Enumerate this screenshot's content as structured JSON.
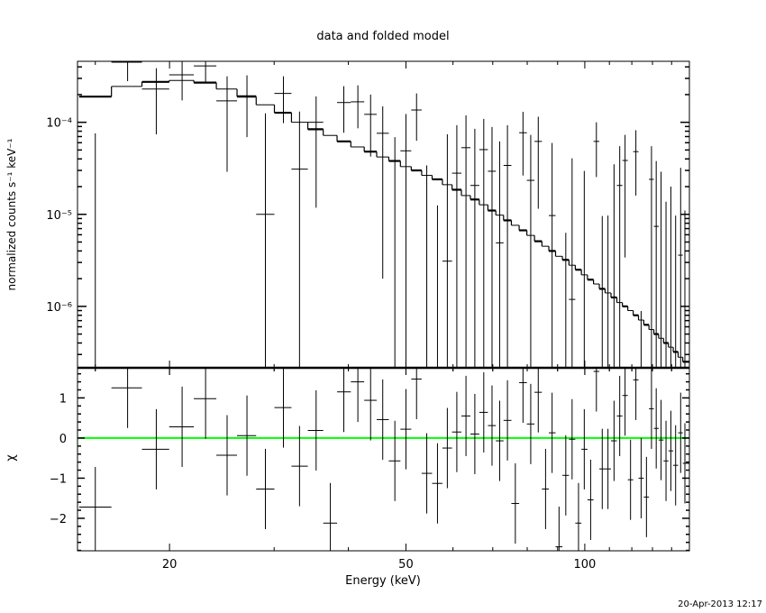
{
  "chart_data": [
    {
      "type": "scatter",
      "panel": "top",
      "title": "data and folded model",
      "ylabel": "normalized counts s⁻¹ keV⁻¹",
      "xscale": "log",
      "yscale": "log",
      "xlim": [
        14,
        150
      ],
      "ylim": [
        2.15e-07,
        0.00046
      ],
      "ytick_labels": [
        {
          "value": 0.0001,
          "label": "10⁻⁴"
        },
        {
          "value": 1e-05,
          "label": "10⁻⁵"
        },
        {
          "value": 1e-06,
          "label": "10⁻⁶"
        }
      ],
      "energy": [
        15.0,
        17.0,
        19.0,
        21.0,
        23.0,
        25.0,
        27.0,
        29.0,
        31.1,
        33.1,
        35.3,
        37.3,
        39.3,
        41.5,
        43.6,
        45.7,
        47.9,
        50.0,
        52.1,
        54.2,
        56.5,
        58.7,
        60.9,
        63.1,
        65.3,
        67.6,
        69.8,
        71.9,
        74.1,
        76.4,
        78.7,
        81.1,
        83.5,
        85.9,
        88.1,
        90.5,
        92.9,
        95.2,
        97.6,
        99.8,
        102.3,
        104.6,
        107.0,
        109.4,
        112.0,
        114.5,
        116.9,
        119.4,
        121.9,
        124.4,
        127.0,
        129.5,
        131.9,
        134.4,
        137.0,
        139.6,
        142.2,
        145.0,
        147.4
      ],
      "data": [
        null,
        0.00045,
        0.00023,
        0.000328,
        0.00041,
        0.000171,
        0.000194,
        1e-05,
        0.000206,
        3.1e-05,
        0.0001,
        null,
        0.000164,
        0.000167,
        0.000122,
        7.6e-05,
        null,
        4.9e-05,
        0.000136,
        null,
        null,
        3.1e-06,
        2.8e-05,
        5.3e-05,
        2.06e-05,
        5.05e-05,
        2.94e-05,
        4.9e-06,
        3.4e-05,
        null,
        7.7e-05,
        2.34e-05,
        6.2e-05,
        null,
        9.7e-06,
        null,
        null,
        1.19e-06,
        null,
        null,
        null,
        6.2e-05,
        null,
        null,
        null,
        2.06e-05,
        3.85e-05,
        null,
        4.8e-05,
        null,
        null,
        2.4e-05,
        7.4e-06,
        null,
        null,
        null,
        null,
        3.6e-06,
        null
      ],
      "data_low": [
        null,
        0.00028,
        7.4e-05,
        0.000173,
        0.000268,
        2.9e-05,
        6.9e-05,
        null,
        9.8e-05,
        null,
        1.18e-05,
        null,
        7.7e-05,
        8.6e-05,
        4.24e-05,
        2e-06,
        null,
        null,
        6.3e-05,
        null,
        null,
        null,
        null,
        null,
        null,
        null,
        null,
        null,
        null,
        null,
        2.64e-05,
        null,
        1.15e-05,
        null,
        null,
        null,
        null,
        null,
        null,
        null,
        null,
        2.54e-05,
        null,
        null,
        null,
        null,
        3.4e-06,
        null,
        1.6e-05,
        null,
        null,
        null,
        null,
        null,
        null,
        null,
        null,
        null,
        null
      ],
      "data_high": [
        7.6e-05,
        0.0006,
        0.000387,
        0.00046,
        0.0005,
        0.000316,
        0.000324,
        0.000125,
        0.000316,
        0.000131,
        0.000191,
        null,
        0.000247,
        0.000252,
        0.0002,
        0.000149,
        6.9e-05,
        0.000123,
        0.000206,
        3.4e-05,
        1.25e-05,
        7.4e-05,
        9.3e-05,
        0.000119,
        8.5e-05,
        0.000109,
        8.9e-05,
        6.2e-05,
        9.3e-05,
        null,
        0.00013,
        7.3e-05,
        0.000115,
        null,
        5.95e-05,
        null,
        6.3e-06,
        4.06e-05,
        null,
        2.96e-05,
        null,
        0.0001,
        9.6e-06,
        9.7e-06,
        3.5e-05,
        5.5e-05,
        7.3e-05,
        null,
        8.2e-05,
        8.9e-07,
        null,
        5.5e-05,
        3.8e-05,
        2.9e-05,
        1.37e-05,
        2e-05,
        9.7e-06,
        3.2e-05,
        1.1e-05
      ],
      "model": [
        0.00019,
        0.000245,
        0.000275,
        0.000285,
        0.00027,
        0.00023,
        0.00019,
        0.000155,
        0.000127,
        0.0001,
        8.4e-05,
        7.2e-05,
        6.2e-05,
        5.4e-05,
        4.8e-05,
        4.2e-05,
        3.8e-05,
        3.3e-05,
        3e-05,
        2.65e-05,
        2.4e-05,
        2.1e-05,
        1.85e-05,
        1.6e-05,
        1.45e-05,
        1.27e-05,
        1.1e-05,
        9.8e-06,
        8.6e-06,
        7.6e-06,
        6.7e-06,
        5.9e-06,
        5.1e-06,
        4.5e-06,
        4e-06,
        3.5e-06,
        3.2e-06,
        2.8e-06,
        2.5e-06,
        2.2e-06,
        1.95e-06,
        1.75e-06,
        1.55e-06,
        1.4e-06,
        1.25e-06,
        1.1e-06,
        1e-06,
        9e-07,
        8e-07,
        7.1e-07,
        6.3e-07,
        5.6e-07,
        5e-07,
        4.5e-07,
        4e-07,
        3.6e-07,
        3.2e-07,
        2.8e-07,
        2.5e-07
      ]
    },
    {
      "type": "scatter",
      "panel": "bottom",
      "ylabel": "χ",
      "xlabel": "Energy (keV)",
      "xscale": "log",
      "xlim": [
        14,
        150
      ],
      "ylim": [
        -2.81,
        1.75
      ],
      "xtick_labels": [
        {
          "value": 20,
          "label": "20"
        },
        {
          "value": 50,
          "label": "50"
        },
        {
          "value": 100,
          "label": "100"
        }
      ],
      "ytick_labels": [
        {
          "value": 1,
          "label": "1"
        },
        {
          "value": 0,
          "label": "0"
        },
        {
          "value": -1,
          "label": "−1"
        },
        {
          "value": -2,
          "label": "−2"
        }
      ],
      "residual_error": 1,
      "zero_line_color": "#00ff00",
      "residuals": [
        -1.72,
        1.25,
        -0.28,
        0.28,
        0.98,
        -0.43,
        0.06,
        -1.27,
        0.76,
        -0.7,
        0.19,
        -2.12,
        1.15,
        1.4,
        0.94,
        0.46,
        -0.57,
        0.22,
        1.47,
        -0.88,
        -1.13,
        -0.25,
        0.15,
        0.55,
        0.1,
        0.64,
        0.31,
        -0.07,
        0.44,
        -1.63,
        1.38,
        0.35,
        1.14,
        -1.27,
        0.13,
        -2.71,
        -0.93,
        -0.03,
        -2.12,
        -0.28,
        -1.54,
        1.66,
        -0.77,
        -0.77,
        -0.07,
        0.55,
        1.06,
        -1.04,
        1.45,
        -1.0,
        -1.47,
        0.73,
        0.24,
        -0.05,
        -0.57,
        -0.32,
        -0.68,
        0.13,
        -0.63
      ]
    }
  ],
  "timestamp": "20-Apr-2013 12:17"
}
